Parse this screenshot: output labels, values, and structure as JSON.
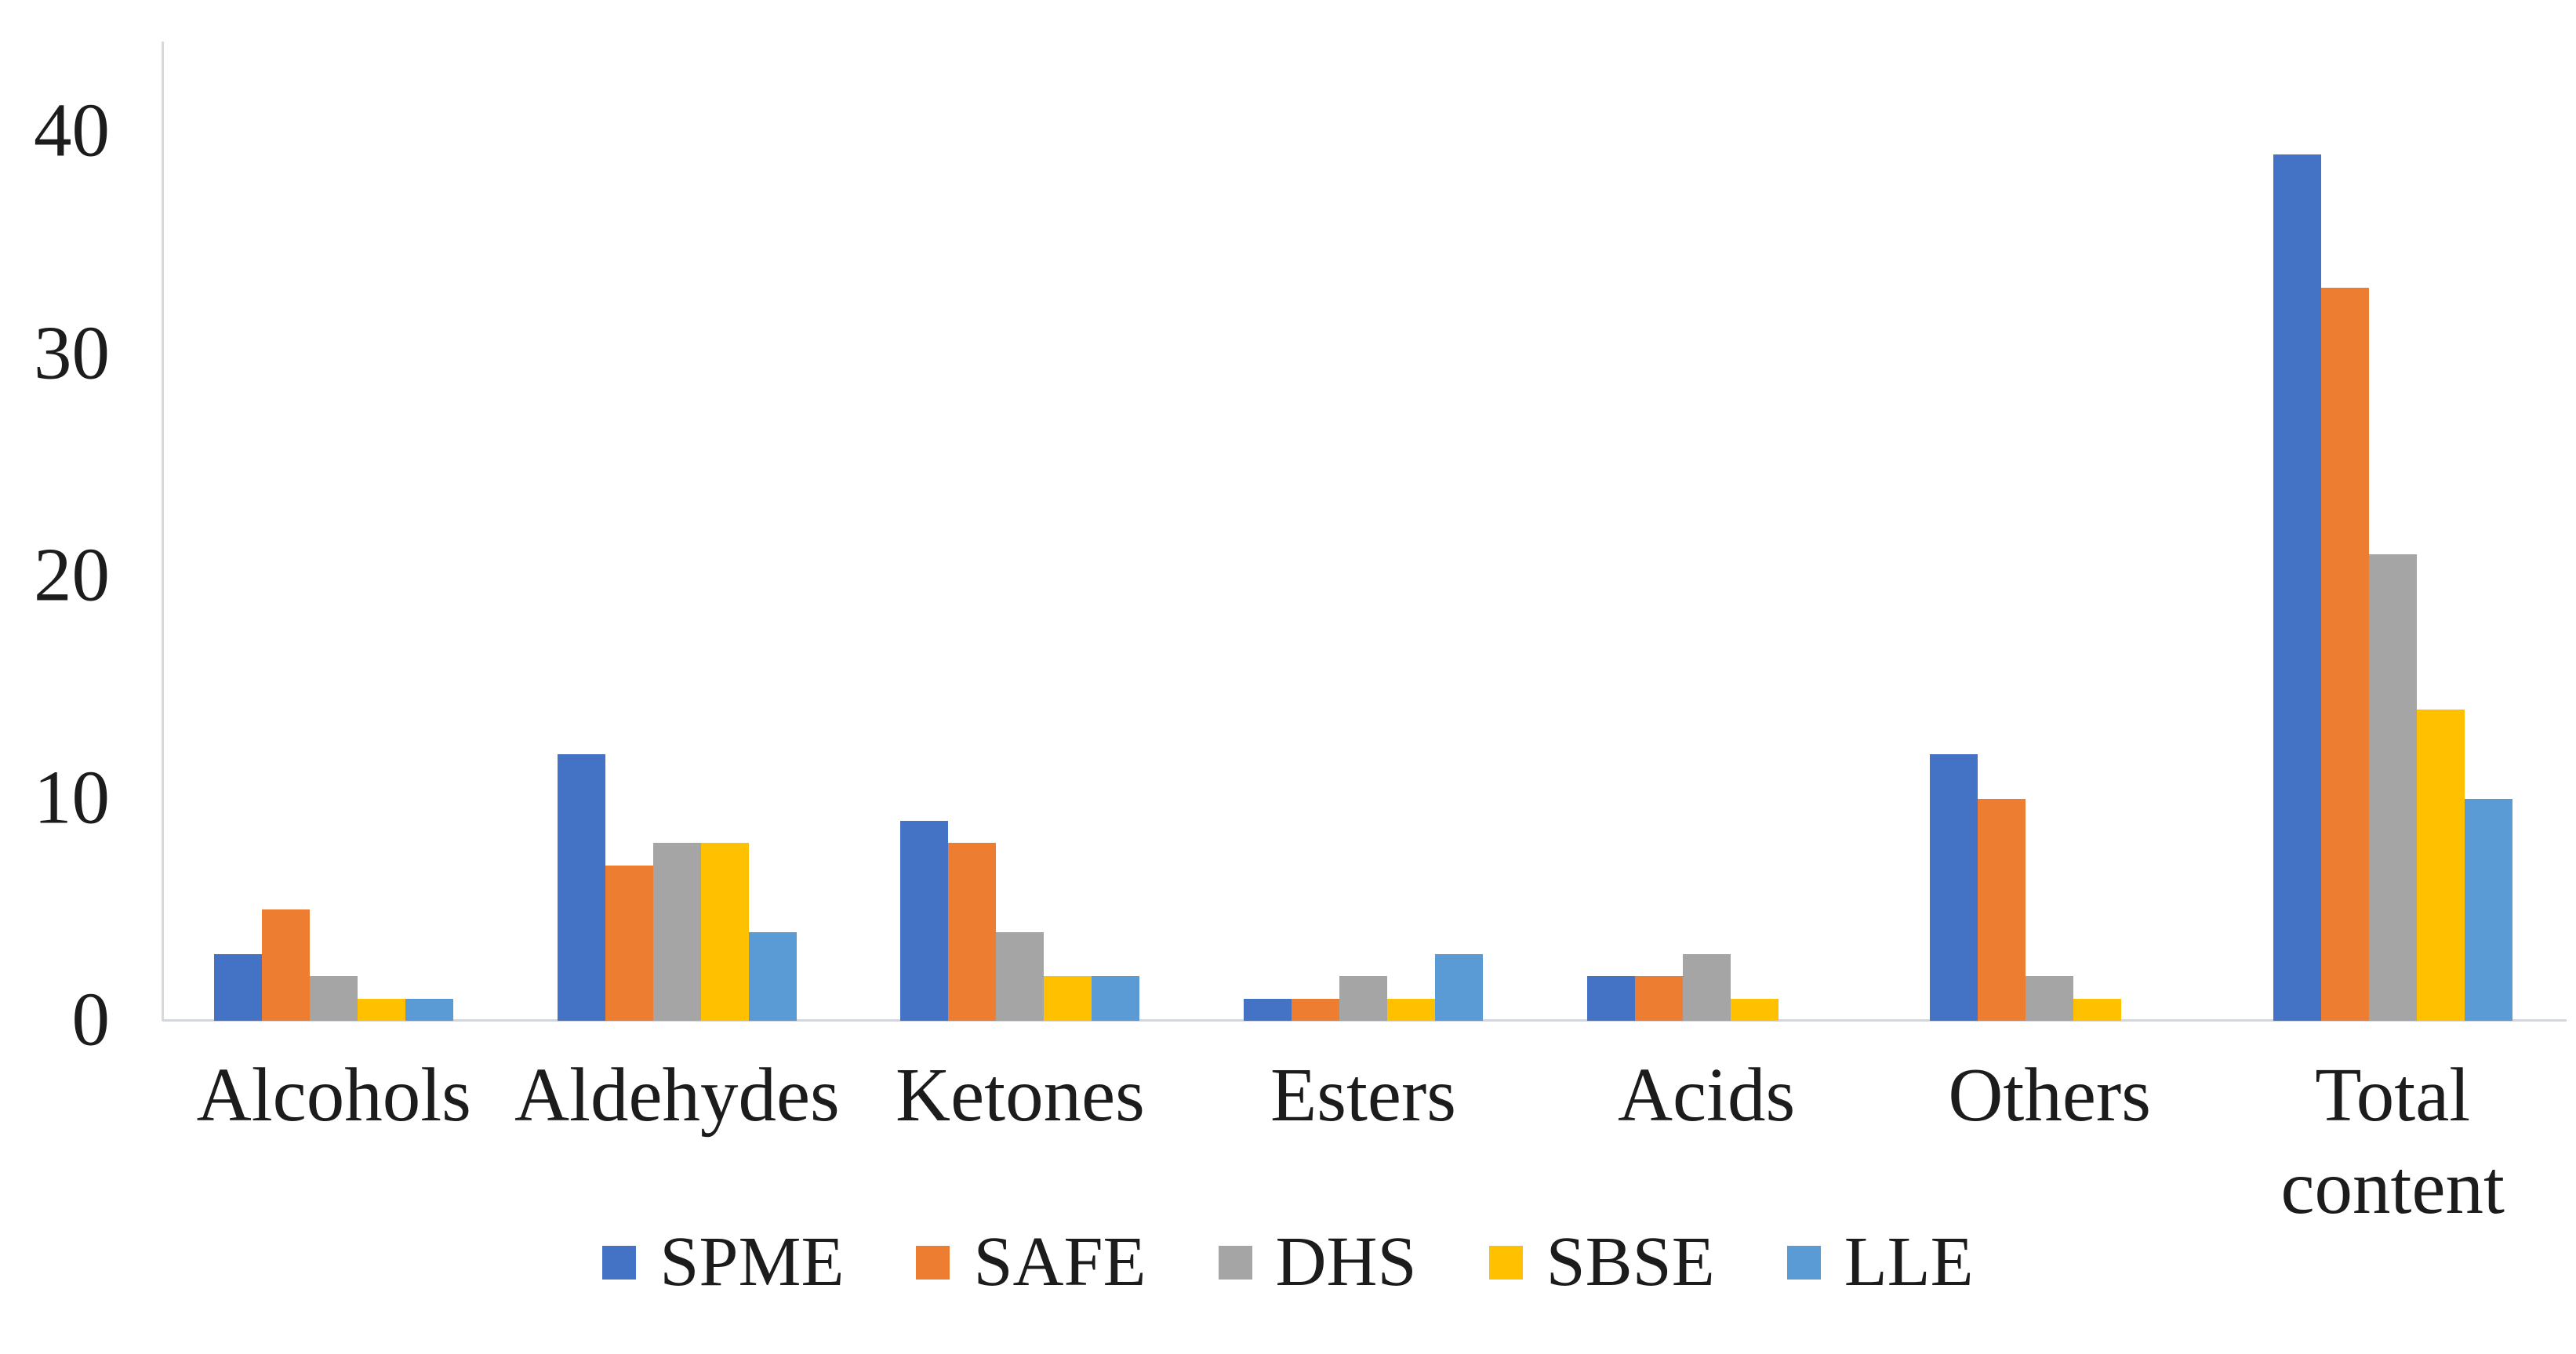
{
  "chart_data": {
    "type": "bar",
    "title": "",
    "xlabel": "",
    "ylabel": "",
    "categories": [
      "Alcohols",
      "Aldehydes",
      "Ketones",
      "Esters",
      "Acids",
      "Others",
      "Total content"
    ],
    "series": [
      {
        "name": "SPME",
        "color": "#4472C4",
        "values": [
          3,
          12,
          9,
          1,
          2,
          12,
          39
        ]
      },
      {
        "name": "SAFE",
        "color": "#ED7D31",
        "values": [
          5,
          7,
          8,
          1,
          2,
          10,
          33
        ]
      },
      {
        "name": "DHS",
        "color": "#A5A5A5",
        "values": [
          2,
          8,
          4,
          2,
          3,
          2,
          21
        ]
      },
      {
        "name": "SBSE",
        "color": "#FFC000",
        "values": [
          1,
          8,
          2,
          1,
          1,
          1,
          14
        ]
      },
      {
        "name": "LLE",
        "color": "#5B9BD5",
        "values": [
          1,
          4,
          2,
          3,
          0,
          0,
          10
        ]
      }
    ],
    "ylim": [
      0,
      44
    ],
    "yticks": [
      0,
      10,
      20,
      30,
      40
    ],
    "ytick_labels": [
      "0",
      "10",
      "20",
      "30",
      "40"
    ],
    "grid": false,
    "legend_position": "bottom",
    "axis_line_color": "#D9D9D9",
    "text_color": "#1C1C1C",
    "background_color": "#FFFFFF"
  }
}
